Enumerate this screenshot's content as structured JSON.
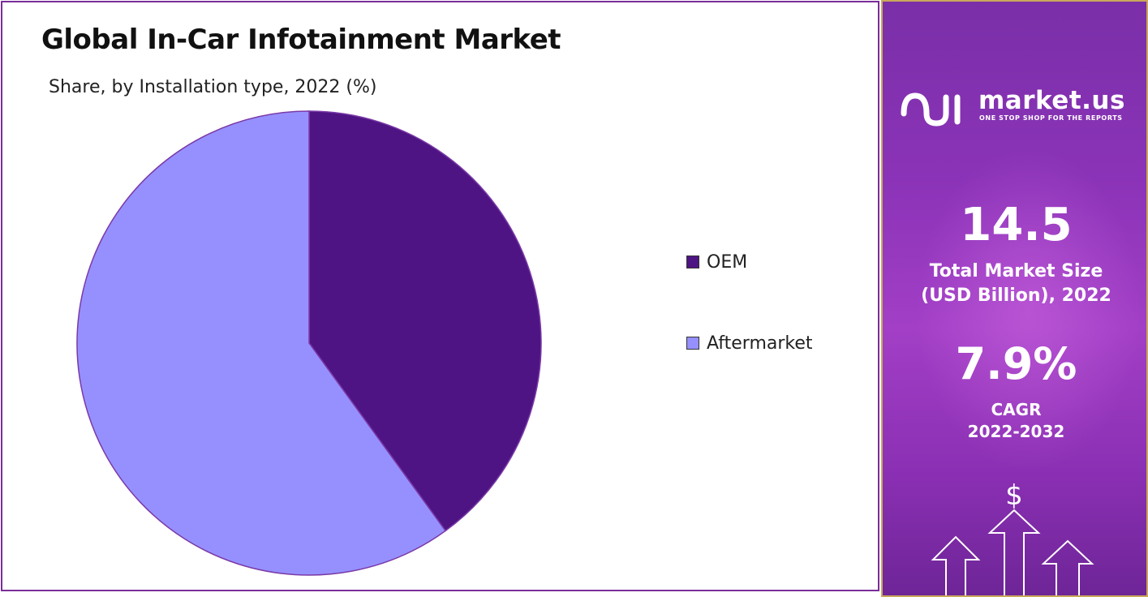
{
  "chart_data": {
    "type": "pie",
    "title": "Global In-Car Infotainment Market",
    "subtitle": "Share, by Installation type, 2022 (%)",
    "categories": [
      "OEM",
      "Aftermarket"
    ],
    "values": [
      40,
      60
    ],
    "colors": [
      "#4f1484",
      "#9690ff"
    ],
    "legend_position": "right"
  },
  "side_panel": {
    "brand": "market.us",
    "tagline": "ONE STOP SHOP FOR THE REPORTS",
    "market_size_value": "14.5",
    "market_size_label_line1": "Total Market Size",
    "market_size_label_line2": "(USD Billion), 2022",
    "cagr_value": "7.9%",
    "cagr_label_line1": "CAGR",
    "cagr_label_line2": "2022-2032",
    "currency_symbol": "$",
    "accent_color": "#8b33b8",
    "border_color": "#c9a85a"
  }
}
